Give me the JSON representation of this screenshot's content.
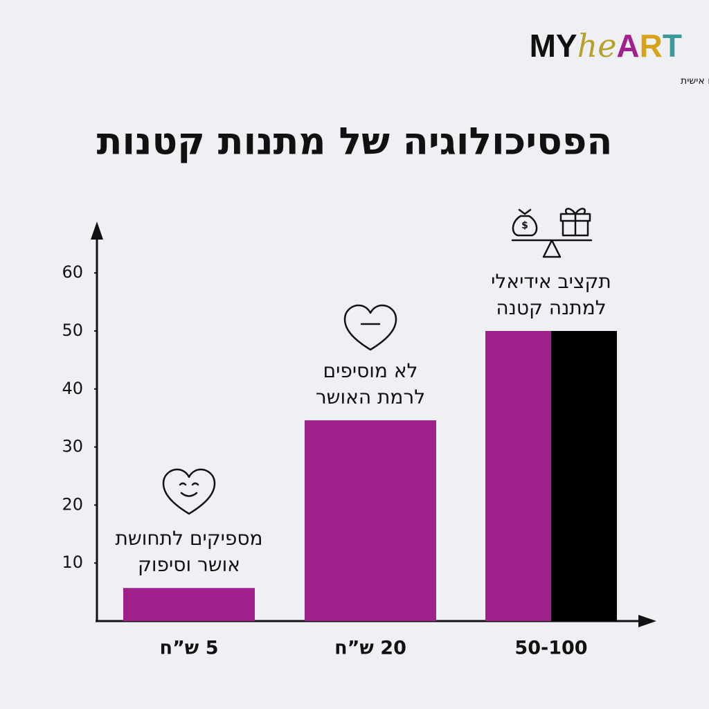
{
  "logo": {
    "parts": [
      {
        "text": "MY",
        "color": "#111111"
      },
      {
        "text": "he",
        "color": "#b8a12a"
      },
      {
        "text": "A",
        "color": "#a0208c"
      },
      {
        "text": "R",
        "color": "#d9a21b"
      },
      {
        "text": "T",
        "color": "#3a9a9a"
      }
    ],
    "tagline": "מוצרי נייר מעוצבים וממותגים אישית"
  },
  "chart_data": {
    "type": "bar",
    "title": "הפסיכולוגיה של מתנות קטנות",
    "categories": [
      "5 ש”ח",
      "20 ש”ח",
      "50-100"
    ],
    "series": [
      {
        "color": "#a0208c",
        "values": [
          5.7,
          34.6,
          50
        ]
      },
      {
        "color": "#000000",
        "values": [
          null,
          null,
          50
        ]
      }
    ],
    "ylim": [
      0,
      68
    ],
    "yticks": [
      10,
      20,
      30,
      40,
      50,
      60
    ],
    "annotations": [
      [
        "מספיקים לתחושת",
        "אושר וסיפוק"
      ],
      [
        "לא מוסיפים",
        "לרמת האושר"
      ],
      [
        "תקציב אידיאלי",
        "למתנה קטנה"
      ]
    ]
  }
}
